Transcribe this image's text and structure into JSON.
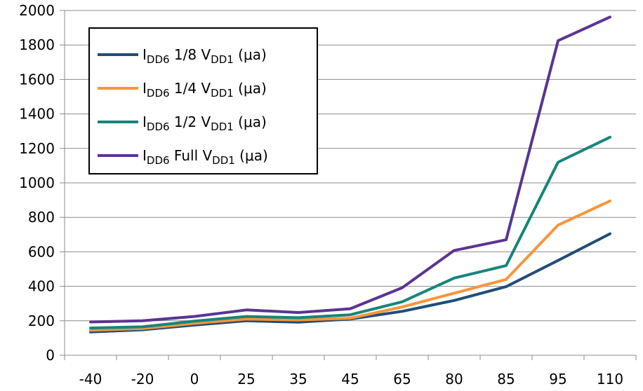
{
  "chart_data": {
    "type": "line",
    "categories": [
      "-40",
      "-20",
      "0",
      "25",
      "35",
      "45",
      "65",
      "80",
      "85",
      "95",
      "110"
    ],
    "ylim": [
      0,
      2000
    ],
    "yticks": [
      0,
      200,
      400,
      600,
      800,
      1000,
      1200,
      1400,
      1600,
      1800,
      2000
    ],
    "grid": true,
    "legend_position": "top-left",
    "series": [
      {
        "name": "I_DD6 1/8 V_DD1 (μa)",
        "label": {
          "main": "I",
          "sub1": "DD6",
          "mid": " 1/8 V",
          "sub2": "DD1",
          "tail": " (μa)"
        },
        "color": "#1f4e79",
        "values": [
          135,
          148,
          175,
          200,
          192,
          210,
          255,
          318,
          398,
          550,
          705
        ]
      },
      {
        "name": "I_DD6 1/4 V_DD1 (μa)",
        "label": {
          "main": "I",
          "sub1": "DD6",
          "mid": " 1/4 V",
          "sub2": "DD1",
          "tail": " (μa)"
        },
        "color": "#f7953b",
        "values": [
          145,
          155,
          185,
          210,
          205,
          215,
          280,
          360,
          440,
          755,
          895
        ]
      },
      {
        "name": "I_DD6 1/2 V_DD1 (μa)",
        "label": {
          "main": "I",
          "sub1": "DD6",
          "mid": " 1/2 V",
          "sub2": "DD1",
          "tail": " (μa)"
        },
        "color": "#16857a",
        "values": [
          158,
          165,
          198,
          225,
          218,
          235,
          310,
          448,
          520,
          1120,
          1265
        ]
      },
      {
        "name": "I_DD6 Full V_DD1 (μa)",
        "label": {
          "main": "I",
          "sub1": "DD6",
          "mid": " Full V",
          "sub2": "DD1",
          "tail": " (μa)"
        },
        "color": "#5a3592",
        "values": [
          193,
          200,
          225,
          263,
          248,
          270,
          392,
          608,
          670,
          1825,
          1962
        ]
      }
    ]
  }
}
